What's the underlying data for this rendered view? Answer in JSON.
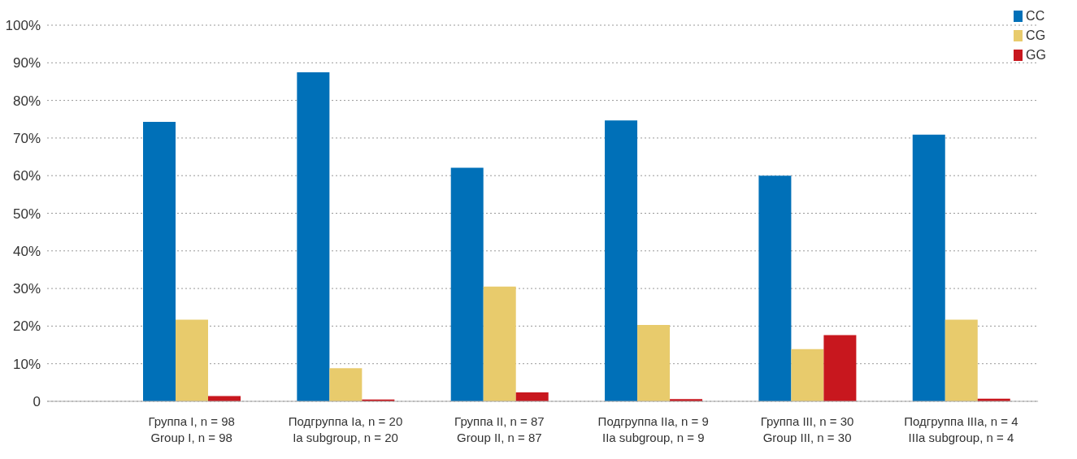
{
  "chart_data": {
    "type": "bar",
    "categories": [
      "Группа I, n = 98\nGroup I, n = 98",
      "Подгруппа Ia, n = 20\nIa subgroup, n = 20",
      "Группа II, n = 87\nGroup II, n = 87",
      "Подгруппа IIa, n = 9\nIIa subgroup, n = 9",
      "Группа III, n = 30\nGroup III, n = 30",
      "Подгруппа IIIa, n = 4\nIIIa subgroup, n = 4"
    ],
    "series": [
      {
        "name": "CC",
        "color": "#0070b8",
        "values": [
          74.3,
          87.5,
          62.1,
          74.7,
          60.0,
          70.9
        ]
      },
      {
        "name": "CG",
        "color": "#e8cb6c",
        "values": [
          21.7,
          8.8,
          30.5,
          20.3,
          13.9,
          21.7
        ]
      },
      {
        "name": "GG",
        "color": "#c8171e",
        "values": [
          1.4,
          0.5,
          2.4,
          0.6,
          17.6,
          0.7
        ]
      }
    ],
    "ylim": [
      0,
      100
    ],
    "yticks": [
      0,
      {
        "value": 10,
        "label": "10%"
      },
      {
        "value": 20,
        "label": "20%"
      },
      {
        "value": 30,
        "label": "30%"
      },
      {
        "value": 40,
        "label": "40%"
      },
      {
        "value": 50,
        "label": "50%"
      },
      {
        "value": 60,
        "label": "60%"
      },
      {
        "value": 70,
        "label": "70%"
      },
      {
        "value": 80,
        "label": "80%"
      },
      {
        "value": 90,
        "label": "90%"
      },
      {
        "value": 100,
        "label": "100%"
      }
    ],
    "grid": "y",
    "legend": "top right"
  }
}
